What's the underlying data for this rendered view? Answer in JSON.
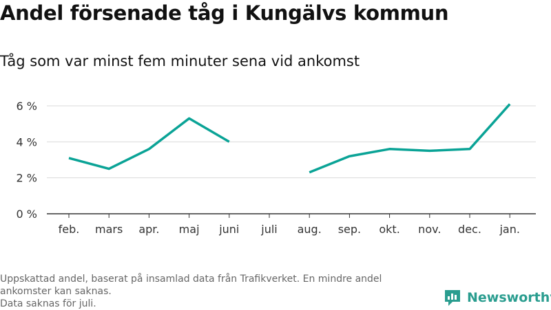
{
  "header": {
    "title": "Andel försenade tåg i Kungälvs kommun",
    "subtitle": "Tåg som var minst fem minuter sena vid ankomst"
  },
  "footnote": {
    "lines": [
      "Uppskattad andel, baserat på insamlad data från Trafikverket. En mindre andel ankomster kan saknas.",
      "Data saknas för juli."
    ]
  },
  "brand": {
    "name": "Newsworthy",
    "logo_icon": "bar-chart-logo-icon"
  },
  "colors": {
    "series": "#0aa396",
    "grid": "#d9d9d9",
    "axis": "#333333",
    "brand": "#2a9d8f"
  },
  "chart_data": {
    "type": "line",
    "categories": [
      "feb.",
      "mars",
      "apr.",
      "maj",
      "juni",
      "juli",
      "aug.",
      "sep.",
      "okt.",
      "nov.",
      "dec.",
      "jan."
    ],
    "series": [
      {
        "values": [
          3.1,
          2.5,
          3.6,
          5.3,
          4.0,
          null,
          2.3,
          3.2,
          3.6,
          3.5,
          3.6,
          6.1
        ]
      }
    ],
    "ylim": [
      0,
      6
    ],
    "yticks": [
      0,
      2,
      4,
      6
    ],
    "ytick_labels": [
      "0 %",
      "2 %",
      "4 %",
      "6 %"
    ],
    "grid": true,
    "legend": "none"
  }
}
